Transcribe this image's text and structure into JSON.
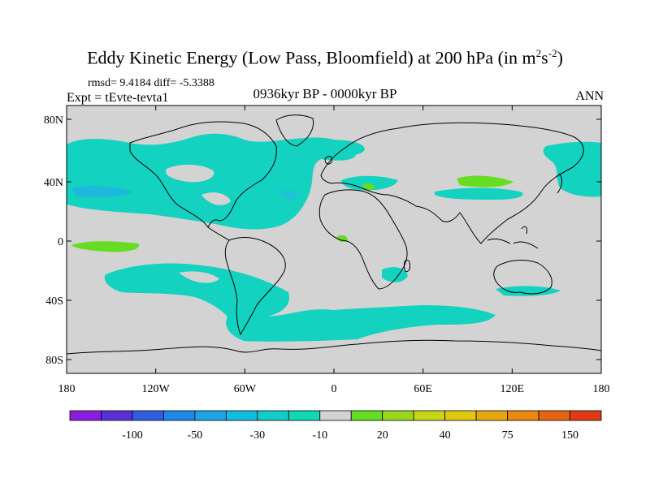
{
  "title": {
    "main": "Eddy Kinetic Energy (Low Pass, Bloomfield) at 200 hPa (in m",
    "sup1": "2",
    "mid": "s",
    "sup2": "-2",
    "end": ")"
  },
  "stats": "rmsd= 9.4184 diff= -5.3388",
  "experiment": "Expt = tEvte-tevta1",
  "period": "0936kyr BP - 0000kyr BP",
  "season": "ANN",
  "map": {
    "land_color": "#d3d3d3",
    "lat_labels": [
      "80N",
      "40N",
      "0",
      "40S",
      "80S"
    ],
    "lon_labels": [
      "180",
      "120W",
      "60W",
      "0",
      "60E",
      "120E",
      "180"
    ]
  },
  "colorbar": {
    "colors": [
      "#8a1ee0",
      "#5a2fd9",
      "#2f5fe0",
      "#1e87e8",
      "#1ea4e6",
      "#12bcdc",
      "#14ccc8",
      "#10d8b4",
      "#d3d3d3",
      "#66dd22",
      "#9ad61e",
      "#c6d41a",
      "#e0c812",
      "#e6a810",
      "#ea8810",
      "#e66410",
      "#e03a14"
    ],
    "labels": [
      "-100",
      "-50",
      "-30",
      "-10",
      "20",
      "40",
      "75",
      "150"
    ]
  }
}
